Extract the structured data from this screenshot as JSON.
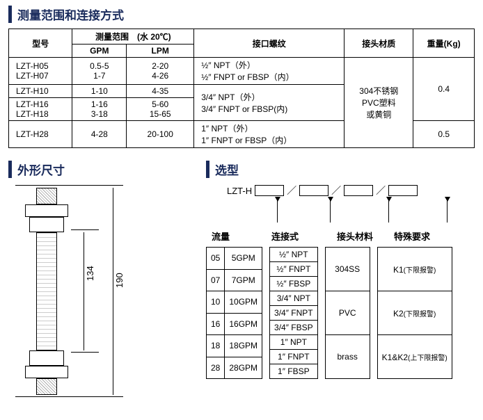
{
  "section1_title": "测量范围和连接方式",
  "section2_title": "外形尺寸",
  "section3_title": "选型",
  "table": {
    "headers": {
      "model": "型号",
      "range_group": "测量范围　(水 20℃)",
      "gpm": "GPM",
      "lpm": "LPM",
      "thread": "接口螺纹",
      "material": "接头材质",
      "weight": "重量(Kg)"
    },
    "rows": [
      {
        "model": "LZT-H05",
        "gpm": "0.5-5",
        "lpm": "2-20"
      },
      {
        "model": "LZT-H07",
        "gpm": "1-7",
        "lpm": "4-26"
      },
      {
        "model": "LZT-H10",
        "gpm": "1-10",
        "lpm": "4-35"
      },
      {
        "model": "LZT-H16",
        "gpm": "1-16",
        "lpm": "5-60"
      },
      {
        "model": "LZT-H18",
        "gpm": "3-18",
        "lpm": "15-65"
      },
      {
        "model": "LZT-H28",
        "gpm": "4-28",
        "lpm": "20-100"
      }
    ],
    "thread1": "½″ NPT（外）\n½″ FNPT or FBSP（内）",
    "thread2": "3/4″ NPT（外）\n3/4″ FNPT or FBSP(内)",
    "thread3": "1″ NPT（外）\n1″ FNPT or FBSP（内）",
    "material_text": "304不锈钢\nPVC塑料\n或黄铜",
    "weight1": "0.4",
    "weight2": "0.5"
  },
  "dims": {
    "d134": "134",
    "d190": "190"
  },
  "model_code": {
    "prefix": "LZT-H",
    "headers": {
      "flow": "流量",
      "conn": "连接式",
      "mat": "接头材料",
      "spec": "特殊要求"
    },
    "flow_opts": [
      [
        "05",
        "5GPM"
      ],
      [
        "07",
        "7GPM"
      ],
      [
        "10",
        "10GPM"
      ],
      [
        "16",
        "16GPM"
      ],
      [
        "18",
        "18GPM"
      ],
      [
        "28",
        "28GPM"
      ]
    ],
    "conn_opts": [
      "½″ NPT",
      "½″ FNPT",
      "½″ FBSP",
      "3/4″ NPT",
      "3/4″ FNPT",
      "3/4″ FBSP",
      "1″ NPT",
      "1″ FNPT",
      "1″ FBSP"
    ],
    "mat_opts": [
      "304SS",
      "PVC",
      "brass"
    ],
    "spec_opts": [
      {
        "code": "K1",
        "note": "(下限报警)"
      },
      {
        "code": "K2",
        "note": "(下限报警)"
      },
      {
        "code": "K1&K2",
        "note": "(上下限报警)"
      }
    ]
  }
}
